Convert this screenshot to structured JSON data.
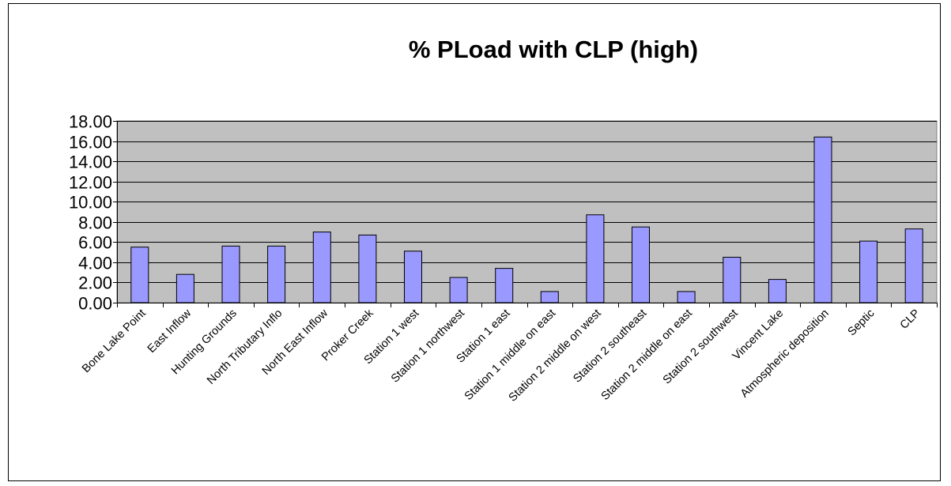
{
  "chart_data": {
    "type": "bar",
    "title": "%  PLoad with CLP (high)",
    "xlabel": "",
    "ylabel": "",
    "categories": [
      "Bone Lake Point",
      "East Inflow",
      "Hunting Grounds",
      "North Tributary Inflo",
      "North East Inflow",
      "Proker Creek",
      "Station 1 west",
      "Station 1 northwest",
      "Station 1 east",
      "Station 1 middle on east",
      "Station 2 middle on west",
      "Station 2 southeast",
      "Station 2 middle on east",
      "Station 2 southwest",
      "Vincent Lake",
      "Atmospheric deposition",
      "Septic",
      "CLP"
    ],
    "values": [
      5.5,
      2.8,
      5.6,
      5.6,
      7.0,
      6.7,
      5.1,
      2.5,
      3.4,
      1.1,
      8.7,
      7.5,
      1.1,
      4.5,
      2.3,
      16.4,
      6.1,
      7.3
    ],
    "ylim": [
      0,
      18
    ],
    "yticks": [
      "0.00",
      "2.00",
      "4.00",
      "6.00",
      "8.00",
      "10.00",
      "12.00",
      "14.00",
      "16.00",
      "18.00"
    ],
    "grid": true,
    "legend": "none",
    "colors": {
      "bar_fill": "#9999ff",
      "bar_stroke": "#000000",
      "plot_background": "#c0c0c0",
      "gridline": "#000000"
    }
  }
}
